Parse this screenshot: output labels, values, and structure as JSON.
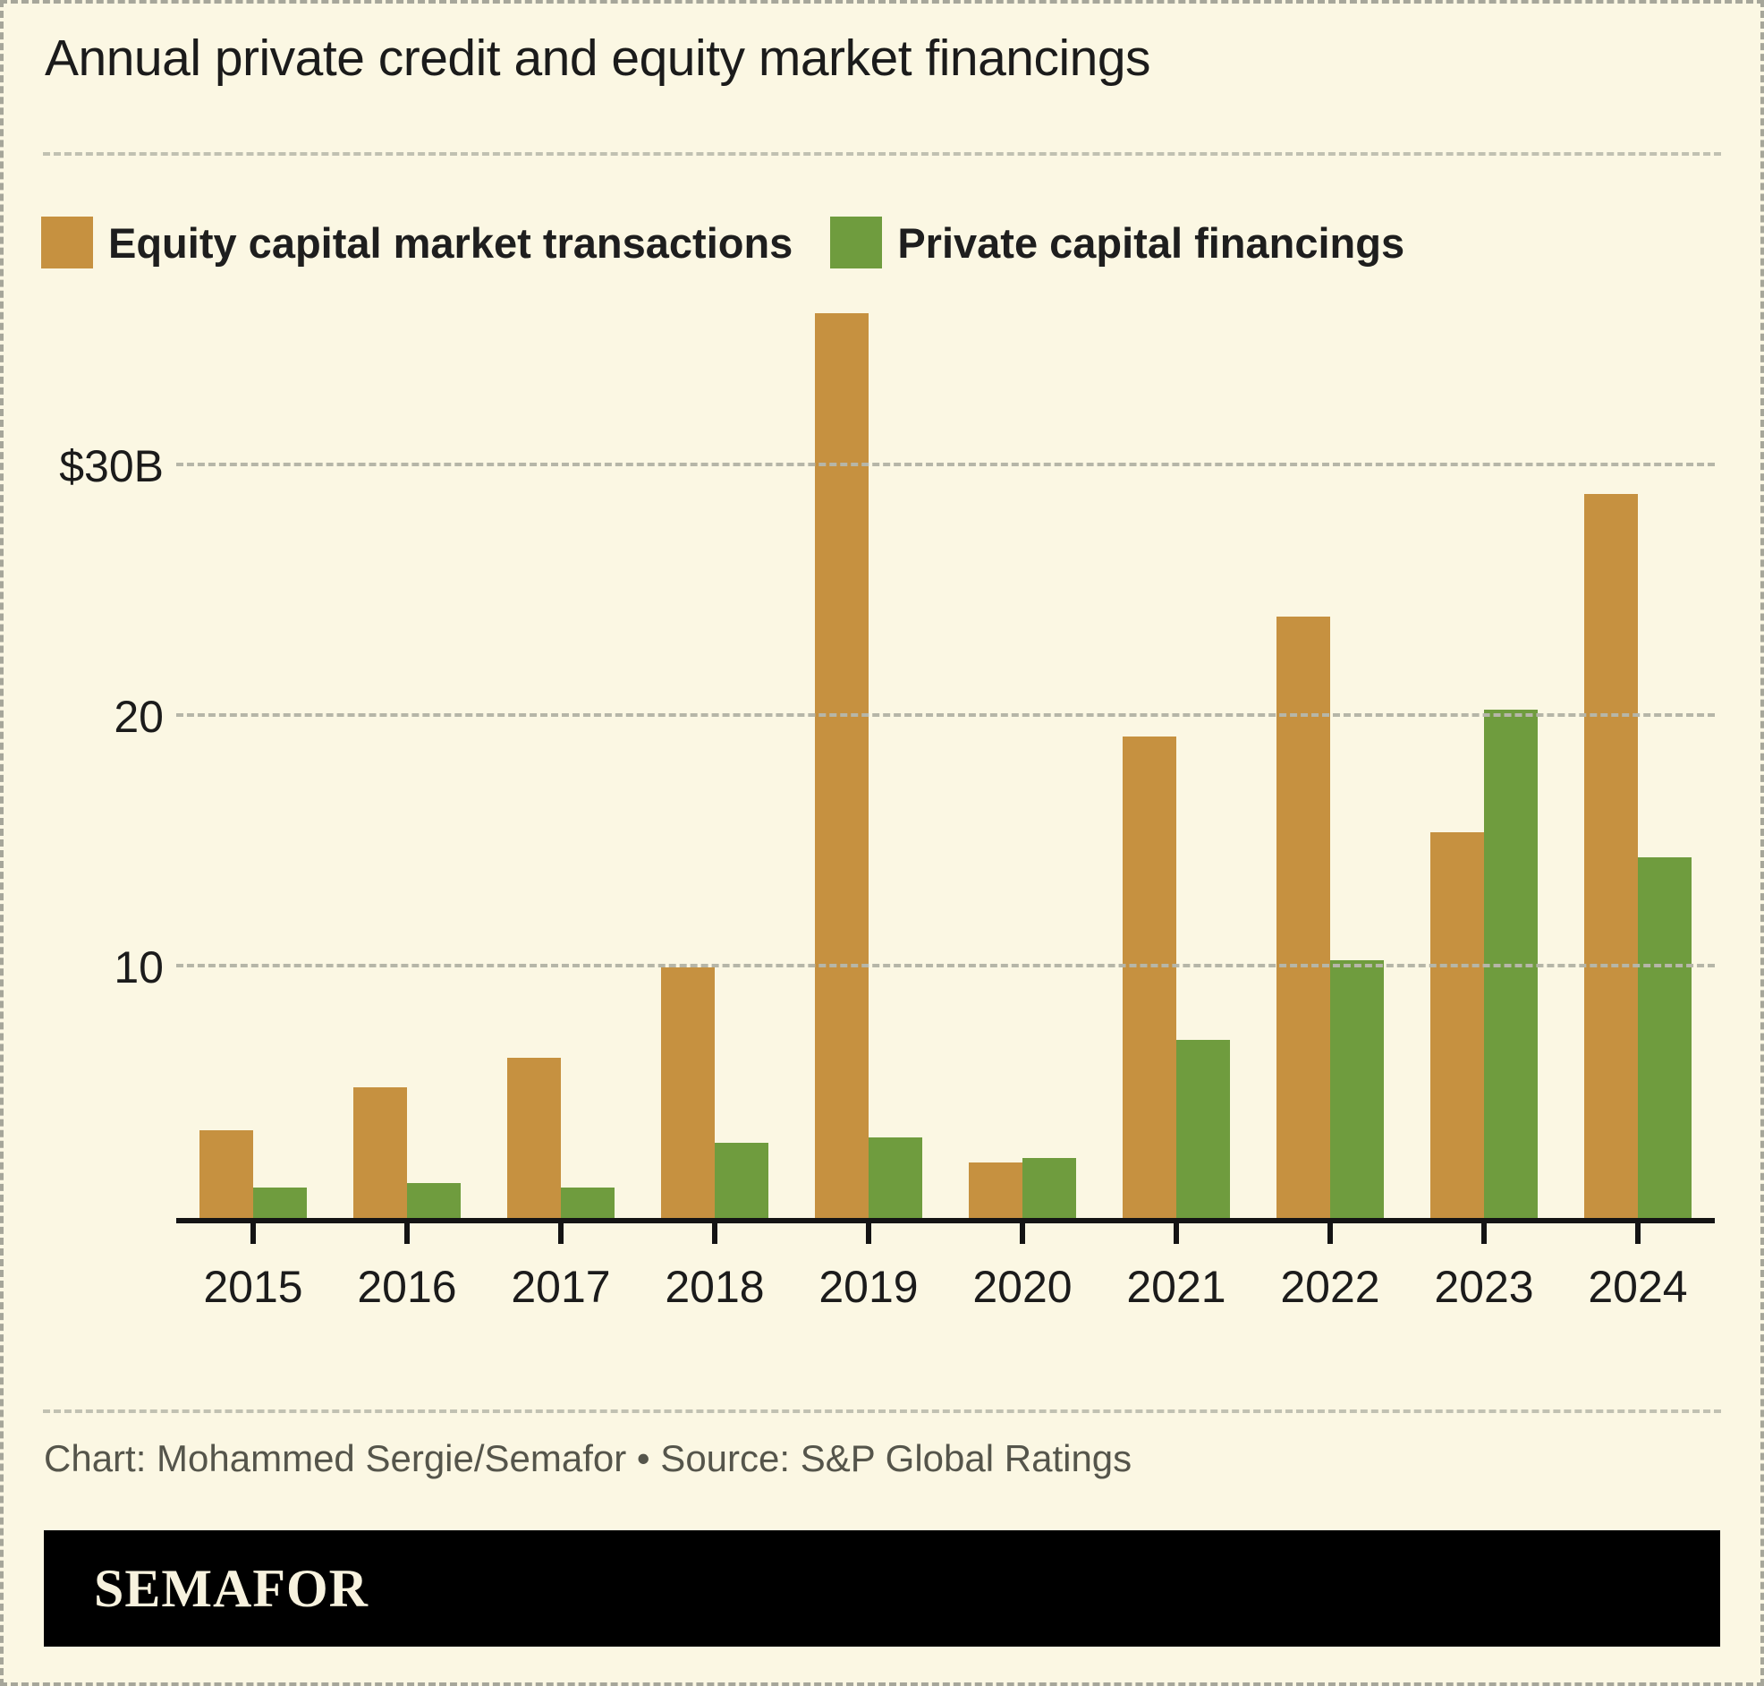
{
  "title": "Annual private credit and equity market financings",
  "footer": {
    "credit": "Chart: Mohammed Sergie/Semafor • Source: S&P Global Ratings"
  },
  "logo": {
    "text": "SEMAFOR"
  },
  "colors": {
    "background": "#fbf7e3",
    "equity_orange": "#c69140",
    "private_green": "#6f9c3e",
    "axis_black": "#141414",
    "grid_gray": "#b6b6a8"
  },
  "chart_data": {
    "type": "bar",
    "title": "Annual private credit and equity market financings",
    "categories": [
      "2015",
      "2016",
      "2017",
      "2018",
      "2019",
      "2020",
      "2021",
      "2022",
      "2023",
      "2024"
    ],
    "series": [
      {
        "name": "Equity capital market transactions",
        "color": "#c69140",
        "values": [
          3.5,
          5.2,
          6.4,
          10.0,
          36.1,
          2.2,
          19.2,
          24.0,
          15.4,
          28.9
        ]
      },
      {
        "name": "Private capital financings",
        "color": "#6f9c3e",
        "values": [
          1.2,
          1.4,
          1.2,
          3.0,
          3.2,
          2.4,
          7.1,
          10.3,
          20.3,
          14.4
        ]
      }
    ],
    "xlabel": "",
    "ylabel": "",
    "units": "billions USD",
    "ylim": [
      0,
      36.5
    ],
    "yticks": [
      {
        "value": 30,
        "label": "$30B"
      },
      {
        "value": 20,
        "label": "20"
      },
      {
        "value": 10,
        "label": "10"
      }
    ],
    "grid": "horizontal-dashed",
    "legend_position": "top-left"
  }
}
